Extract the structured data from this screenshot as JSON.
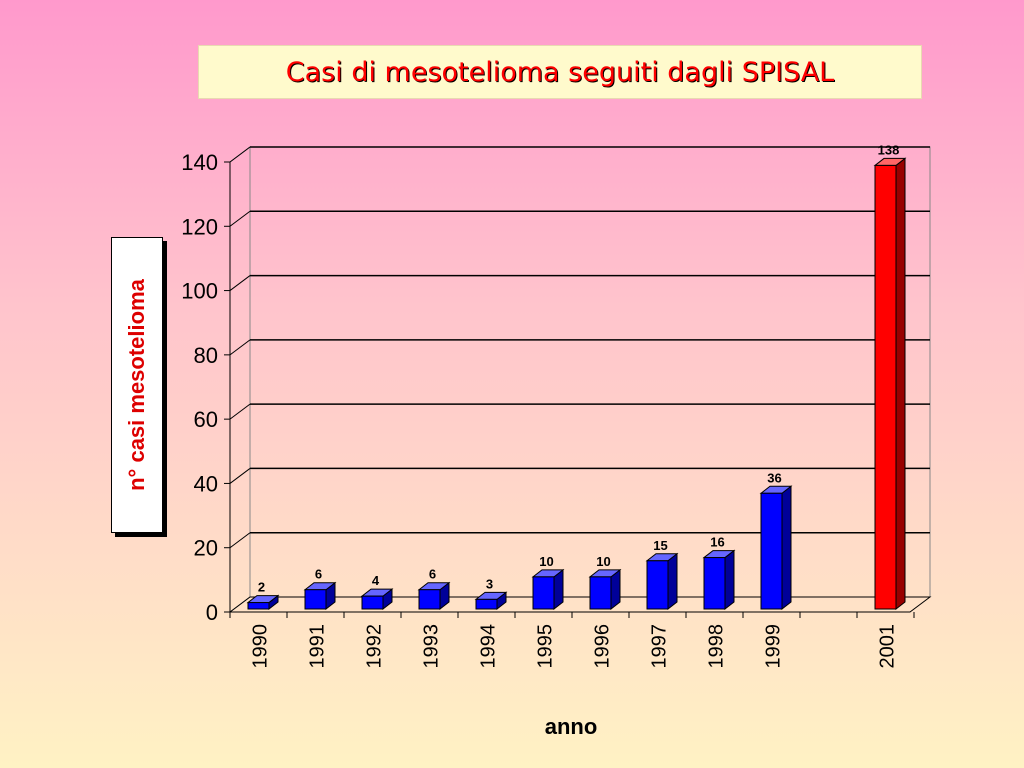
{
  "chart_data": {
    "type": "bar",
    "title": "Casi di mesotelioma seguiti dagli SPISAL",
    "xlabel": "anno",
    "ylabel": "n° casi mesotelioma",
    "categories": [
      "1990",
      "1991",
      "1992",
      "1993",
      "1994",
      "1995",
      "1996",
      "1997",
      "1998",
      "1999",
      "2001"
    ],
    "values": [
      2,
      6,
      4,
      6,
      3,
      10,
      10,
      15,
      16,
      36,
      138
    ],
    "data_labels": [
      "2",
      "6",
      "4",
      "6",
      "3",
      "10",
      "10",
      "15",
      "16",
      "36",
      "138"
    ],
    "yticks": [
      "0",
      "20",
      "40",
      "60",
      "80",
      "100",
      "120",
      "140"
    ],
    "ylim": [
      0,
      140
    ],
    "grid": true,
    "style": "3d",
    "colors": {
      "bar": "#0000ff",
      "highlight_bar": "#ff0000",
      "title": "#ff0000",
      "ylabel": "#dd0000"
    }
  }
}
